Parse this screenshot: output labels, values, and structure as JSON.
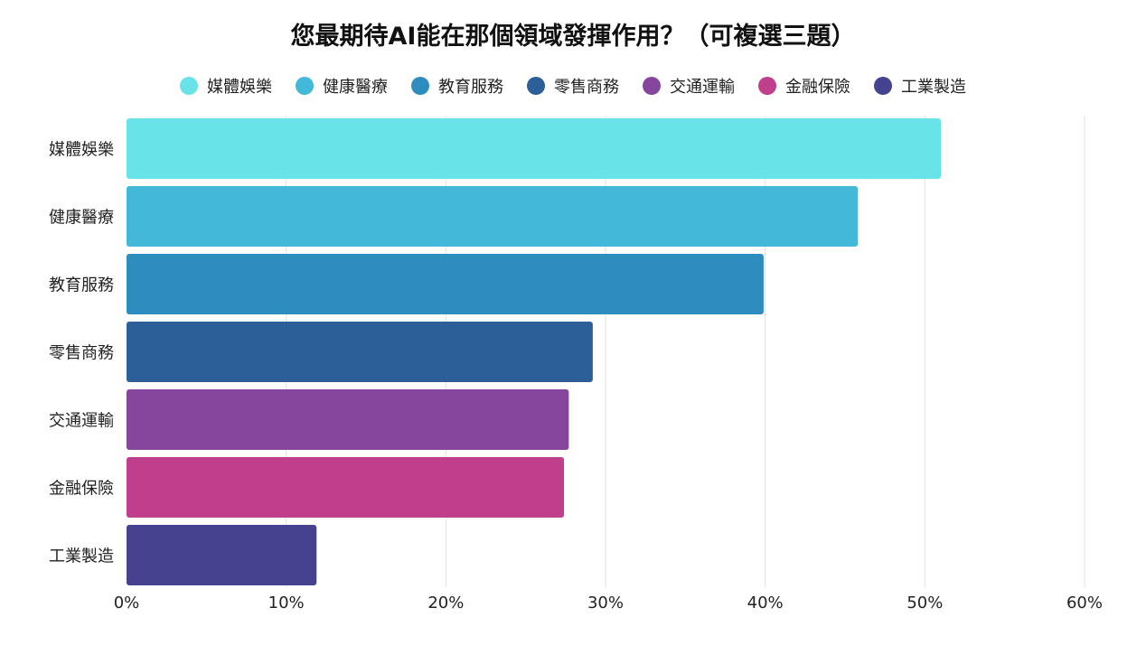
{
  "chart_data": {
    "type": "bar",
    "orientation": "horizontal",
    "title": "您最期待AI能在那個領域發揮作用？（可複選三題）",
    "categories": [
      "媒體娛樂",
      "健康醫療",
      "教育服務",
      "零售商務",
      "交通運輸",
      "金融保險",
      "工業製造"
    ],
    "values": [
      51,
      45.8,
      39.9,
      29.2,
      27.7,
      27.4,
      11.9
    ],
    "colors": [
      "#68E4E8",
      "#43B8D8",
      "#2E8DBE",
      "#2C5F97",
      "#86469D",
      "#BF3F8C",
      "#45428F"
    ],
    "series": [
      {
        "name": "媒體娛樂",
        "color": "#68E4E8"
      },
      {
        "name": "健康醫療",
        "color": "#43B8D8"
      },
      {
        "name": "教育服務",
        "color": "#2E8DBE"
      },
      {
        "name": "零售商務",
        "color": "#2C5F97"
      },
      {
        "name": "交通運輸",
        "color": "#86469D"
      },
      {
        "name": "金融保險",
        "color": "#BF3F8C"
      },
      {
        "name": "工業製造",
        "color": "#45428F"
      }
    ],
    "xlim": [
      0,
      60
    ],
    "xticks": [
      0,
      10,
      20,
      30,
      40,
      50,
      60
    ],
    "xtick_labels": [
      "0%",
      "10%",
      "20%",
      "30%",
      "40%",
      "50%",
      "60%"
    ],
    "xlabel": "",
    "ylabel": "",
    "grid": "vertical",
    "legend_position": "top-center"
  }
}
